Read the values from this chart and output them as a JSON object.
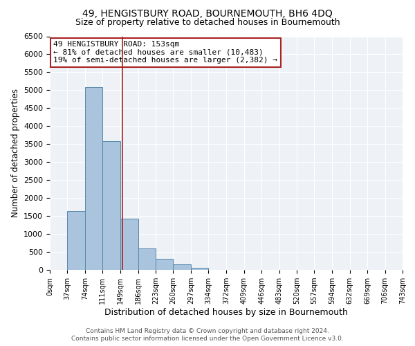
{
  "title": "49, HENGISTBURY ROAD, BOURNEMOUTH, BH6 4DQ",
  "subtitle": "Size of property relative to detached houses in Bournemouth",
  "xlabel": "Distribution of detached houses by size in Bournemouth",
  "ylabel": "Number of detached properties",
  "bin_labels": [
    "0sqm",
    "37sqm",
    "74sqm",
    "111sqm",
    "149sqm",
    "186sqm",
    "223sqm",
    "260sqm",
    "297sqm",
    "334sqm",
    "372sqm",
    "409sqm",
    "446sqm",
    "483sqm",
    "520sqm",
    "557sqm",
    "594sqm",
    "632sqm",
    "669sqm",
    "706sqm",
    "743sqm"
  ],
  "bar_values": [
    0,
    1630,
    5080,
    3590,
    1420,
    590,
    300,
    150,
    60,
    0,
    0,
    0,
    0,
    0,
    0,
    0,
    0,
    0,
    0,
    0
  ],
  "bin_edges": [
    0,
    37,
    74,
    111,
    149,
    186,
    223,
    260,
    297,
    334,
    372,
    409,
    446,
    483,
    520,
    557,
    594,
    632,
    669,
    706,
    743
  ],
  "bar_color": "#aac4dd",
  "bar_edge_color": "#5588aa",
  "vline_x": 153,
  "vline_color": "#aa2222",
  "annotation_line1": "49 HENGISTBURY ROAD: 153sqm",
  "annotation_line2": "← 81% of detached houses are smaller (10,483)",
  "annotation_line3": "19% of semi-detached houses are larger (2,382) →",
  "annotation_box_edgecolor": "#aa2222",
  "ylim": [
    0,
    6500
  ],
  "yticks": [
    0,
    500,
    1000,
    1500,
    2000,
    2500,
    3000,
    3500,
    4000,
    4500,
    5000,
    5500,
    6000,
    6500
  ],
  "background_color": "#ffffff",
  "plot_bg_color": "#eef2f7",
  "grid_color": "#ffffff",
  "footer_line1": "Contains HM Land Registry data © Crown copyright and database right 2024.",
  "footer_line2": "Contains public sector information licensed under the Open Government Licence v3.0."
}
